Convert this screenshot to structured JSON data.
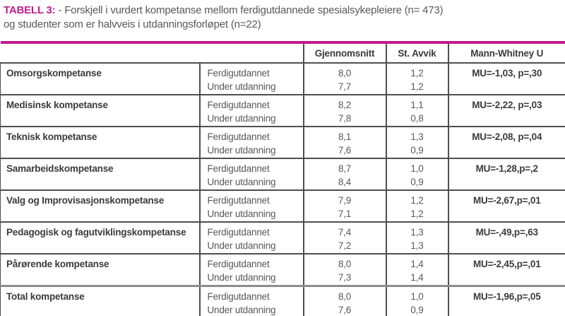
{
  "caption": {
    "label": "TABELL 3:",
    "line1": "- Forskjell i vurdert kompetanse mellom ferdigutdannede spesialsykepleiere (n= 473)",
    "line2": "og studenter som er halvveis i utdanningsforløpet (n=22)"
  },
  "table": {
    "headers": {
      "gjennomsnitt": "Gjennomsnitt",
      "st_avvik": "St. Avvik",
      "mann_whitney": "Mann-Whitney U"
    },
    "status_labels": {
      "ferdig": "Ferdigutdannet",
      "under": "Under utdanning"
    },
    "rows": [
      {
        "name": "Omsorgskompetanse",
        "ferdig_mean": "8,0",
        "under_mean": "7,7",
        "ferdig_sd": "1,2",
        "under_sd": "1,2",
        "mu": "MU=-1,03, p=,30"
      },
      {
        "name": "Medisinsk kompetanse",
        "ferdig_mean": "8,2",
        "under_mean": "7,8",
        "ferdig_sd": "1,1",
        "under_sd": "0,8",
        "mu": "MU=-2,22, p=,03"
      },
      {
        "name": "Teknisk kompetanse",
        "ferdig_mean": "8,1",
        "under_mean": "7,6",
        "ferdig_sd": "1,3",
        "under_sd": "0,9",
        "mu": "MU=-2,08, p=,04"
      },
      {
        "name": "Samarbeidskompetanse",
        "ferdig_mean": "8,7",
        "under_mean": "8,4",
        "ferdig_sd": "1,0",
        "under_sd": "0,9",
        "mu": "MU=-1,28,p=,2"
      },
      {
        "name": "Valg og Improvisasjonskompetanse",
        "ferdig_mean": "7,9",
        "under_mean": "7,1",
        "ferdig_sd": "1,2",
        "under_sd": "1,2",
        "mu": "MU=-2,67,p=,01"
      },
      {
        "name": "Pedagogisk og fagutviklingskompetanse",
        "ferdig_mean": "7,4",
        "under_mean": "7,2",
        "ferdig_sd": "1,3",
        "under_sd": "1,3",
        "mu": "MU=-,49,p=,63"
      },
      {
        "name": "Pårørende kompetanse",
        "ferdig_mean": "8,0",
        "under_mean": "7,3",
        "ferdig_sd": "1,4",
        "under_sd": "1,4",
        "mu": "MU=-2,45,p=,01"
      },
      {
        "name": "Total kompetanse",
        "ferdig_mean": "8,0",
        "under_mean": "7,6",
        "ferdig_sd": "1,0",
        "under_sd": "0,9",
        "mu": "MU=-1,96,p=,05"
      }
    ]
  },
  "colors": {
    "accent": "#c01c8b",
    "text_dark": "#3b3b3d",
    "text_gray": "#57585a",
    "border": "#4f4f51",
    "heavy_divider": "#8c8c8c"
  }
}
